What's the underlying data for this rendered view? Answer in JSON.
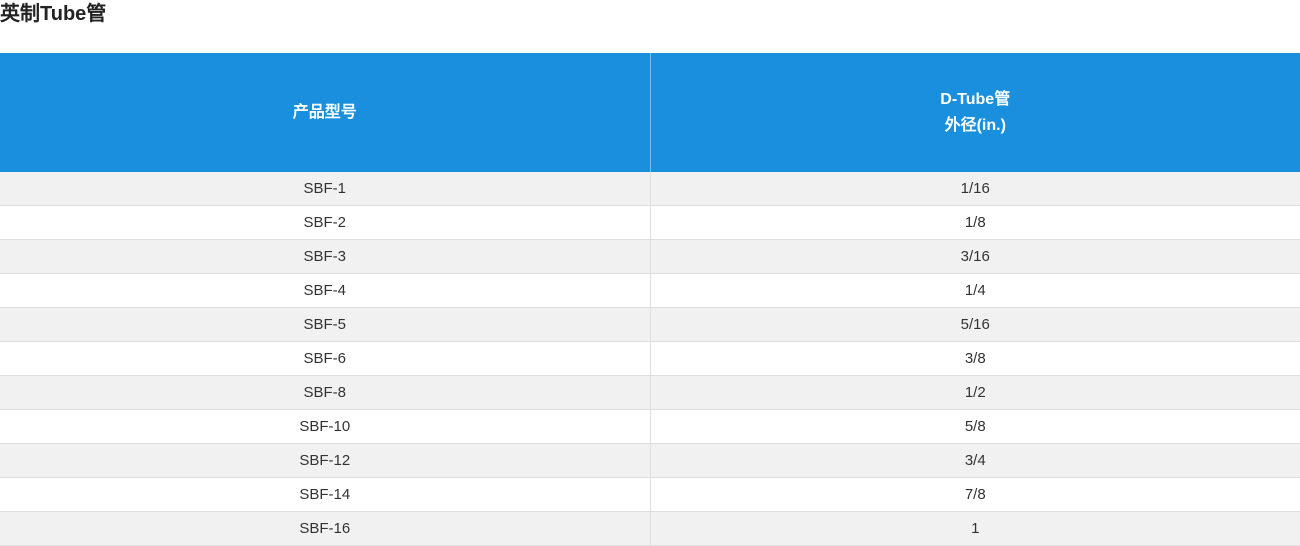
{
  "title": "英制Tube管",
  "table": {
    "header": [
      [
        "产品型号"
      ],
      [
        "D-Tube管",
        "外径(in.)"
      ]
    ],
    "rows": [
      [
        "SBF-1",
        "1/16"
      ],
      [
        "SBF-2",
        "1/8"
      ],
      [
        "SBF-3",
        "3/16"
      ],
      [
        "SBF-4",
        "1/4"
      ],
      [
        "SBF-5",
        "5/16"
      ],
      [
        "SBF-6",
        "3/8"
      ],
      [
        "SBF-8",
        "1/2"
      ],
      [
        "SBF-10",
        "5/8"
      ],
      [
        "SBF-12",
        "3/4"
      ],
      [
        "SBF-14",
        "7/8"
      ],
      [
        "SBF-16",
        "1"
      ]
    ]
  }
}
